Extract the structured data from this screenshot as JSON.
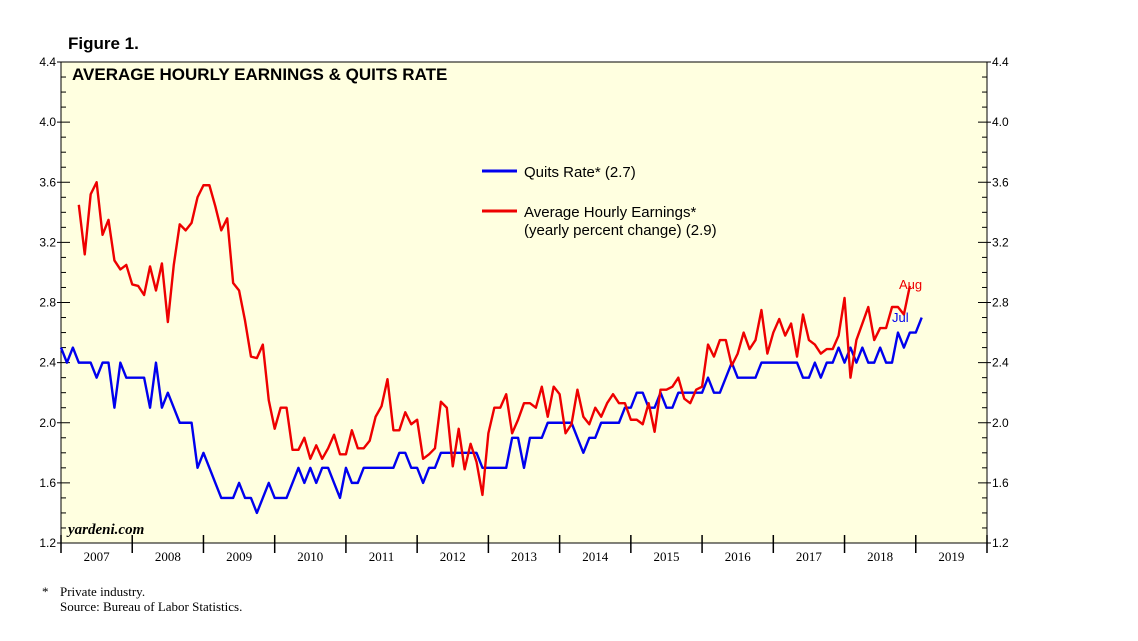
{
  "figure_label": "Figure 1.",
  "footnote": {
    "marker": "*",
    "line1": "Private industry.",
    "line2": "Source: Bureau of Labor Statistics."
  },
  "colors": {
    "plot_background": "#ffffe0",
    "quits": "#0000ee",
    "earnings": "#ee0000"
  },
  "chart_data": {
    "type": "line",
    "title": "AVERAGE HOURLY EARNINGS & QUITS RATE",
    "watermark": "yardeni.com",
    "xlabel": "",
    "ylabel": "",
    "ylim": [
      1.2,
      4.4
    ],
    "xlim": [
      2007.0,
      2020.0
    ],
    "y_ticks": [
      "1.2",
      "1.6",
      "2.0",
      "2.4",
      "2.8",
      "3.2",
      "3.6",
      "4.0",
      "4.4"
    ],
    "x_tick_labels": [
      "2007",
      "2008",
      "2009",
      "2010",
      "2011",
      "2012",
      "2013",
      "2014",
      "2015",
      "2016",
      "2017",
      "2018",
      "2019"
    ],
    "legend": [
      {
        "name": "Quits Rate* (2.7)",
        "series": "quits"
      },
      {
        "name": "Average Hourly Earnings*",
        "name2": "(yearly percent change) (2.9)",
        "series": "earnings"
      }
    ],
    "series": [
      {
        "name": "Quits Rate*",
        "id": "quits",
        "end_label": "Jul",
        "start": 2007.0,
        "step": 0.0833333,
        "values": [
          2.5,
          2.4,
          2.5,
          2.4,
          2.4,
          2.4,
          2.3,
          2.4,
          2.4,
          2.1,
          2.4,
          2.3,
          2.3,
          2.3,
          2.3,
          2.1,
          2.4,
          2.1,
          2.2,
          2.1,
          2.0,
          2.0,
          2.0,
          1.7,
          1.8,
          1.7,
          1.6,
          1.5,
          1.5,
          1.5,
          1.6,
          1.5,
          1.5,
          1.4,
          1.5,
          1.6,
          1.5,
          1.5,
          1.5,
          1.6,
          1.7,
          1.6,
          1.7,
          1.6,
          1.7,
          1.7,
          1.6,
          1.5,
          1.7,
          1.6,
          1.6,
          1.7,
          1.7,
          1.7,
          1.7,
          1.7,
          1.7,
          1.8,
          1.8,
          1.7,
          1.7,
          1.6,
          1.7,
          1.7,
          1.8,
          1.8,
          1.8,
          1.8,
          1.8,
          1.8,
          1.8,
          1.7,
          1.7,
          1.7,
          1.7,
          1.7,
          1.9,
          1.9,
          1.7,
          1.9,
          1.9,
          1.9,
          2.0,
          2.0,
          2.0,
          2.0,
          2.0,
          1.9,
          1.8,
          1.9,
          1.9,
          2.0,
          2.0,
          2.0,
          2.0,
          2.1,
          2.1,
          2.2,
          2.2,
          2.1,
          2.1,
          2.2,
          2.1,
          2.1,
          2.2,
          2.2,
          2.2,
          2.2,
          2.2,
          2.3,
          2.2,
          2.2,
          2.3,
          2.4,
          2.3,
          2.3,
          2.3,
          2.3,
          2.4,
          2.4,
          2.4,
          2.4,
          2.4,
          2.4,
          2.4,
          2.3,
          2.3,
          2.4,
          2.3,
          2.4,
          2.4,
          2.5,
          2.4,
          2.5,
          2.4,
          2.5,
          2.4,
          2.4,
          2.5,
          2.4,
          2.4,
          2.6,
          2.5,
          2.6,
          2.6,
          2.7
        ]
      },
      {
        "name": "Average Hourly Earnings*",
        "id": "earnings",
        "end_label": "Aug",
        "start": 2007.25,
        "step": 0.0833333,
        "values": [
          3.45,
          3.12,
          3.52,
          3.6,
          3.25,
          3.35,
          3.08,
          3.02,
          3.05,
          2.92,
          2.91,
          2.85,
          3.04,
          2.88,
          3.06,
          2.67,
          3.05,
          3.32,
          3.28,
          3.33,
          3.5,
          3.58,
          3.58,
          3.44,
          3.28,
          3.36,
          2.93,
          2.88,
          2.68,
          2.44,
          2.43,
          2.52,
          2.15,
          1.96,
          2.1,
          2.1,
          1.82,
          1.82,
          1.9,
          1.76,
          1.85,
          1.76,
          1.83,
          1.92,
          1.79,
          1.79,
          1.95,
          1.83,
          1.83,
          1.88,
          2.04,
          2.11,
          2.29,
          1.95,
          1.95,
          2.07,
          1.99,
          2.02,
          1.76,
          1.79,
          1.83,
          2.14,
          2.1,
          1.71,
          1.96,
          1.69,
          1.86,
          1.74,
          1.52,
          1.93,
          2.1,
          2.1,
          2.19,
          1.93,
          2.02,
          2.13,
          2.13,
          2.1,
          2.24,
          2.04,
          2.24,
          2.19,
          1.93,
          1.99,
          2.22,
          2.04,
          1.99,
          2.1,
          2.04,
          2.13,
          2.19,
          2.13,
          2.13,
          2.02,
          2.02,
          1.99,
          2.13,
          1.94,
          2.22,
          2.22,
          2.24,
          2.3,
          2.16,
          2.13,
          2.22,
          2.24,
          2.52,
          2.44,
          2.55,
          2.55,
          2.38,
          2.46,
          2.6,
          2.49,
          2.55,
          2.75,
          2.46,
          2.6,
          2.69,
          2.58,
          2.66,
          2.44,
          2.72,
          2.55,
          2.52,
          2.46,
          2.49,
          2.49,
          2.58,
          2.83,
          2.3,
          2.55,
          2.66,
          2.77,
          2.55,
          2.63,
          2.63,
          2.77,
          2.77,
          2.72,
          2.91
        ]
      }
    ]
  }
}
